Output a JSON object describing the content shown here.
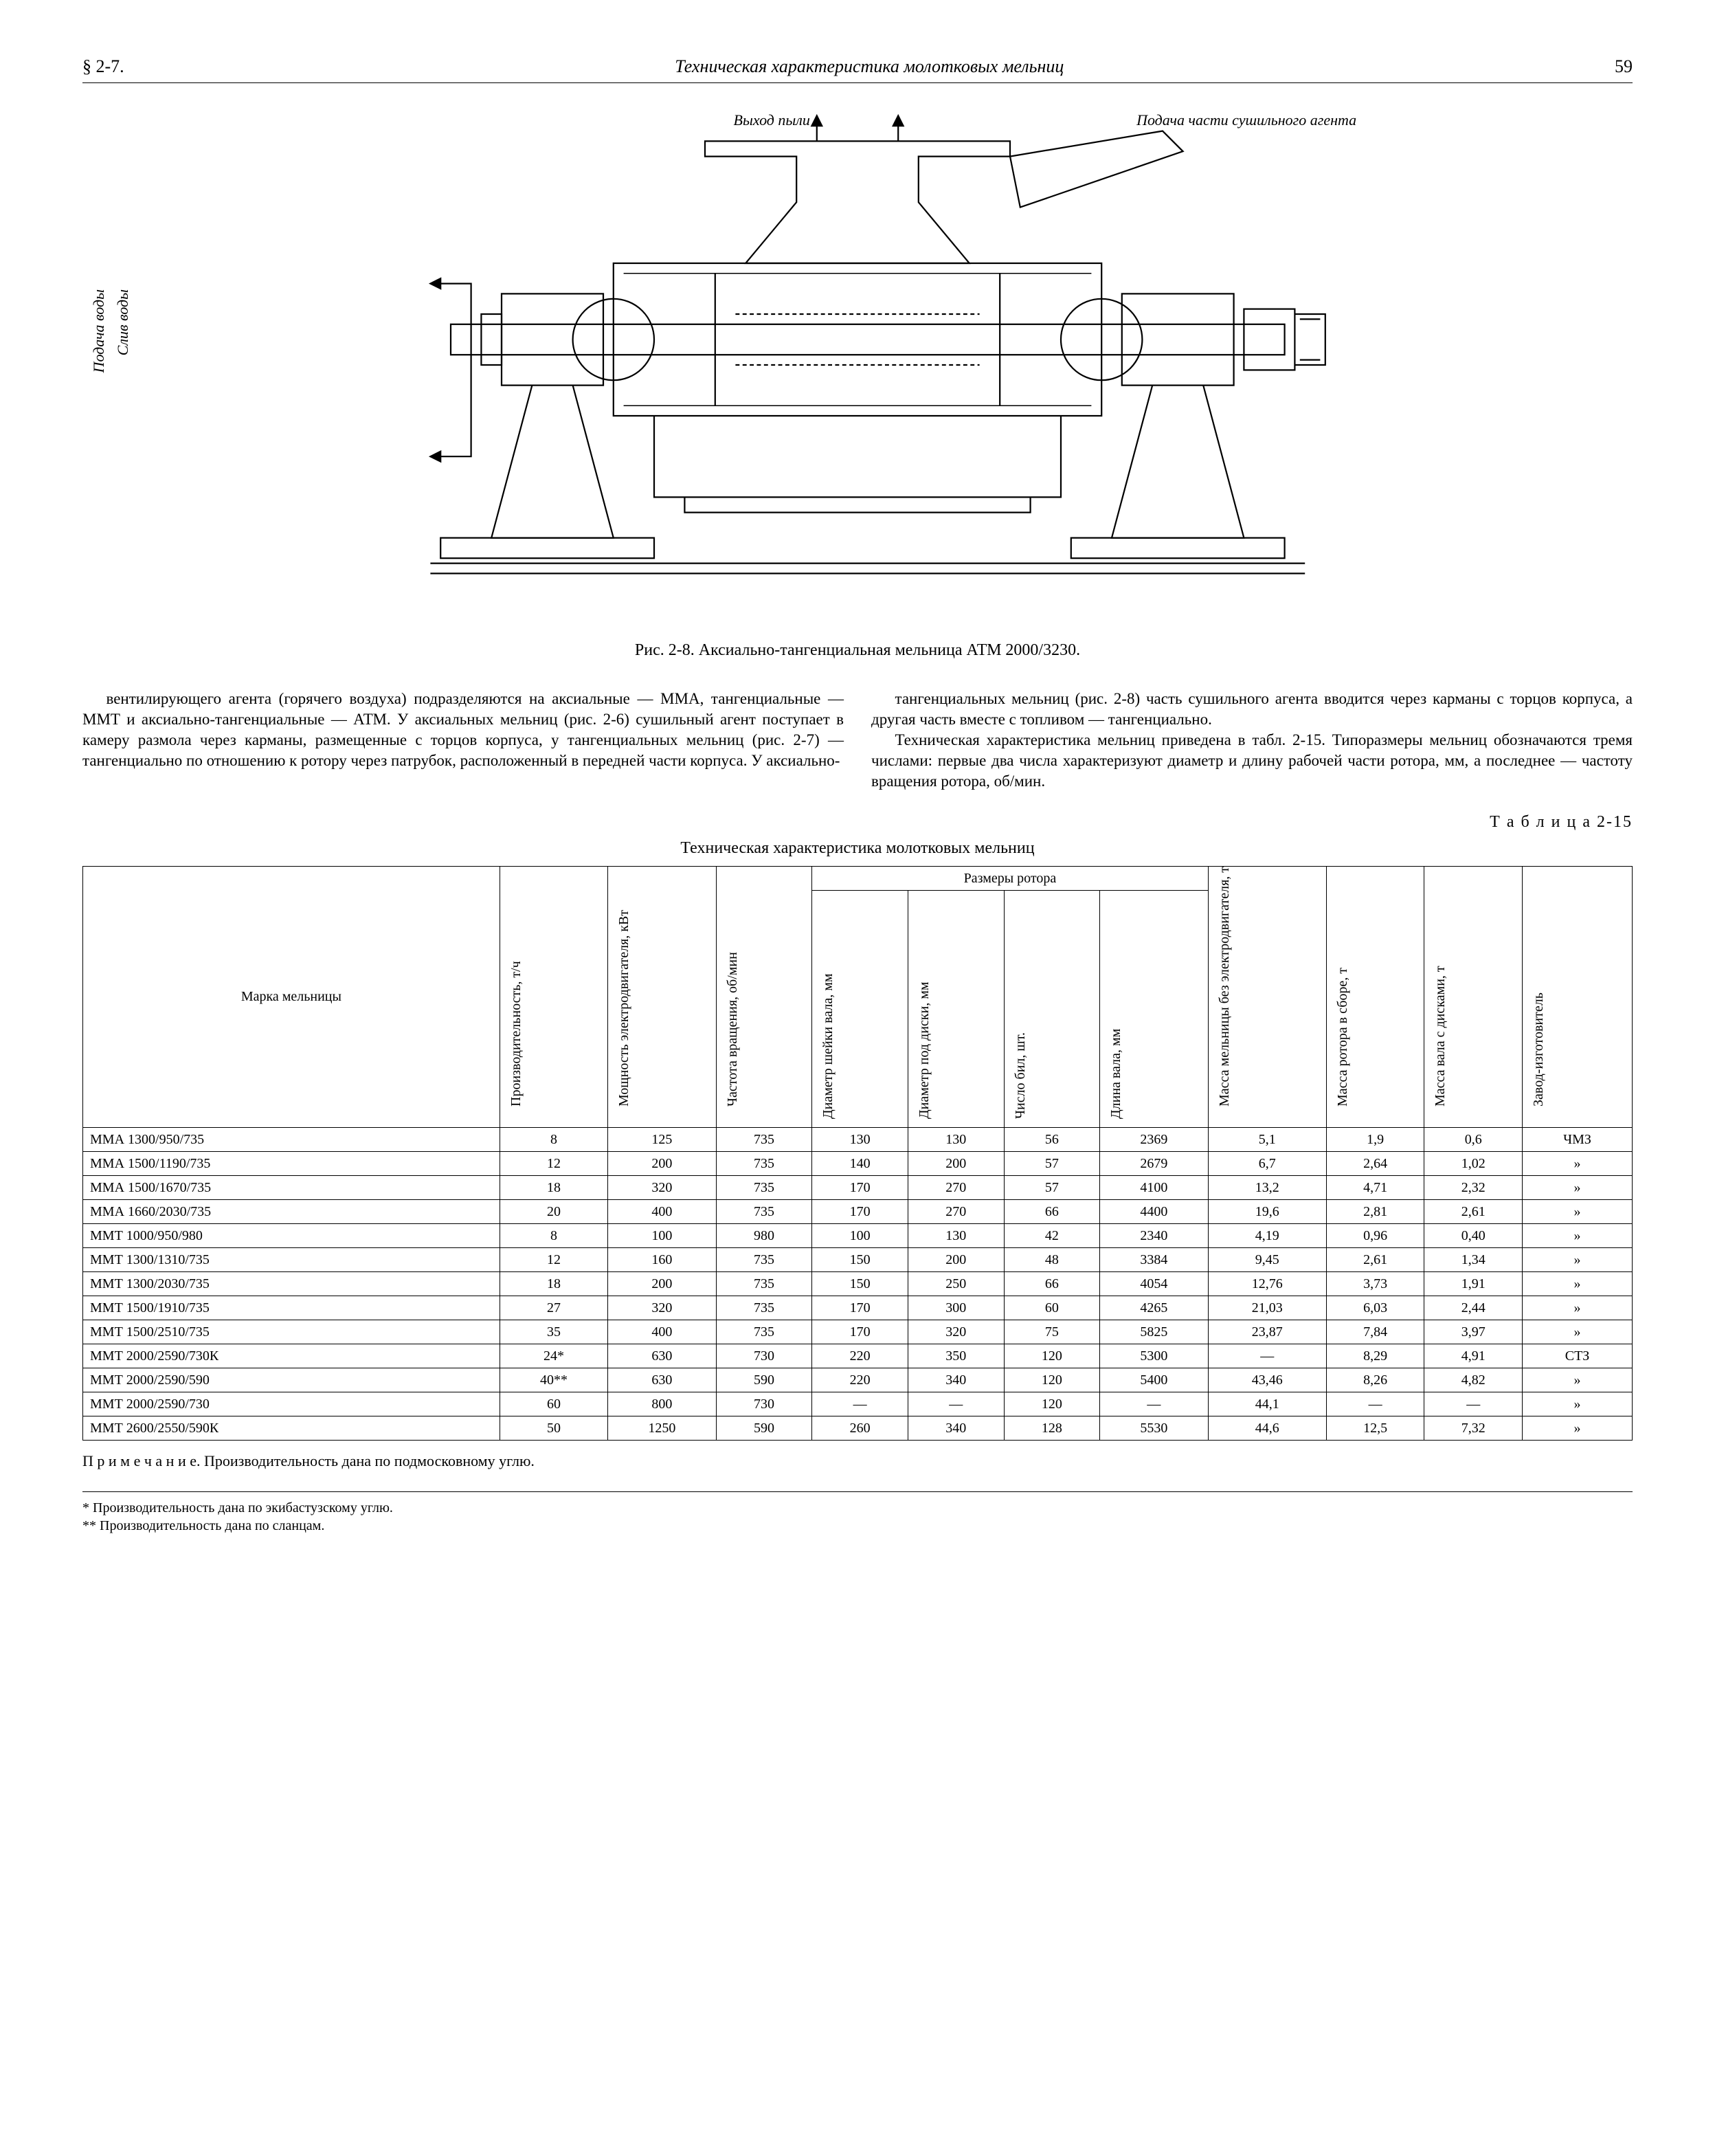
{
  "header": {
    "section": "§ 2-7.",
    "title": "Техническая характеристика молотковых мельниц",
    "page": "59"
  },
  "figure": {
    "caption": "Рис. 2-8. Аксиально-тангенциальная мельница АТМ 2000/3230.",
    "labels": {
      "top1": "Выход пыли",
      "top2": "Подача части сушильного агента",
      "left1": "Подача воды",
      "left2": "Слив воды"
    }
  },
  "bodytext": {
    "p1": "вентилирующего агента (горячего воздуха) подразделяются на аксиальные — ММА, тангенциальные — ММТ и аксиально-тангенциальные — АТМ. У аксиальных мельниц (рис. 2-6) сушильный агент поступает в камеру размола через карманы, размещенные с торцов корпуса, у тангенциальных мельниц (рис. 2-7) — тангенциально по отношению к ротору через патрубок, расположенный в передней части корпуса. У аксиально-",
    "p2": "тангенциальных мельниц (рис. 2-8) часть сушильного агента вводится через карманы с торцов корпуса, а другая часть вместе с топливом — тангенциально.",
    "p3": "Техническая характеристика мельниц приведена в табл. 2-15. Типоразмеры мельниц обозначаются тремя числами: первые два числа характеризуют диаметр и длину рабочей части ротора, мм, а последнее — частоту вращения ротора, об/мин."
  },
  "table": {
    "label": "Т а б л и ц а  2-15",
    "title": "Техническая характеристика молотковых мельниц",
    "group_header": "Размеры ротора",
    "columns": [
      "Марка мельницы",
      "Производительность, т/ч",
      "Мощность электродвигателя, кВт",
      "Частота вращения, об/мин",
      "Диаметр шейки вала, мм",
      "Диаметр под диски, мм",
      "Число бил, шт.",
      "Длина вала, мм",
      "Масса мельницы без электродвигателя, т",
      "Масса ротора в сборе, т",
      "Масса вала с дисками, т",
      "Завод-изготовитель"
    ],
    "rows": [
      [
        "ММА 1300/950/735",
        "8",
        "125",
        "735",
        "130",
        "130",
        "56",
        "2369",
        "5,1",
        "1,9",
        "0,6",
        "ЧМЗ"
      ],
      [
        "ММА 1500/1190/735",
        "12",
        "200",
        "735",
        "140",
        "200",
        "57",
        "2679",
        "6,7",
        "2,64",
        "1,02",
        "»"
      ],
      [
        "ММА 1500/1670/735",
        "18",
        "320",
        "735",
        "170",
        "270",
        "57",
        "4100",
        "13,2",
        "4,71",
        "2,32",
        "»"
      ],
      [
        "ММА 1660/2030/735",
        "20",
        "400",
        "735",
        "170",
        "270",
        "66",
        "4400",
        "19,6",
        "2,81",
        "2,61",
        "»"
      ],
      [
        "ММТ 1000/950/980",
        "8",
        "100",
        "980",
        "100",
        "130",
        "42",
        "2340",
        "4,19",
        "0,96",
        "0,40",
        "»"
      ],
      [
        "ММТ 1300/1310/735",
        "12",
        "160",
        "735",
        "150",
        "200",
        "48",
        "3384",
        "9,45",
        "2,61",
        "1,34",
        "»"
      ],
      [
        "ММТ 1300/2030/735",
        "18",
        "200",
        "735",
        "150",
        "250",
        "66",
        "4054",
        "12,76",
        "3,73",
        "1,91",
        "»"
      ],
      [
        "ММТ 1500/1910/735",
        "27",
        "320",
        "735",
        "170",
        "300",
        "60",
        "4265",
        "21,03",
        "6,03",
        "2,44",
        "»"
      ],
      [
        "ММТ 1500/2510/735",
        "35",
        "400",
        "735",
        "170",
        "320",
        "75",
        "5825",
        "23,87",
        "7,84",
        "3,97",
        "»"
      ],
      [
        "ММТ 2000/2590/730К",
        "24*",
        "630",
        "730",
        "220",
        "350",
        "120",
        "5300",
        "—",
        "8,29",
        "4,91",
        "СТЗ"
      ],
      [
        "ММТ 2000/2590/590",
        "40**",
        "630",
        "590",
        "220",
        "340",
        "120",
        "5400",
        "43,46",
        "8,26",
        "4,82",
        "»"
      ],
      [
        "ММТ 2000/2590/730",
        "60",
        "800",
        "730",
        "—",
        "—",
        "120",
        "—",
        "44,1",
        "—",
        "—",
        "»"
      ],
      [
        "ММТ 2600/2550/590К",
        "50",
        "1250",
        "590",
        "260",
        "340",
        "128",
        "5530",
        "44,6",
        "12,5",
        "7,32",
        "»"
      ]
    ],
    "note": "П р и м е ч а н и е.  Производительность дана по подмосковному углю.",
    "footnotes": [
      "* Производительность дана по экибастузскому углю.",
      "** Производительность дана по сланцам."
    ]
  }
}
